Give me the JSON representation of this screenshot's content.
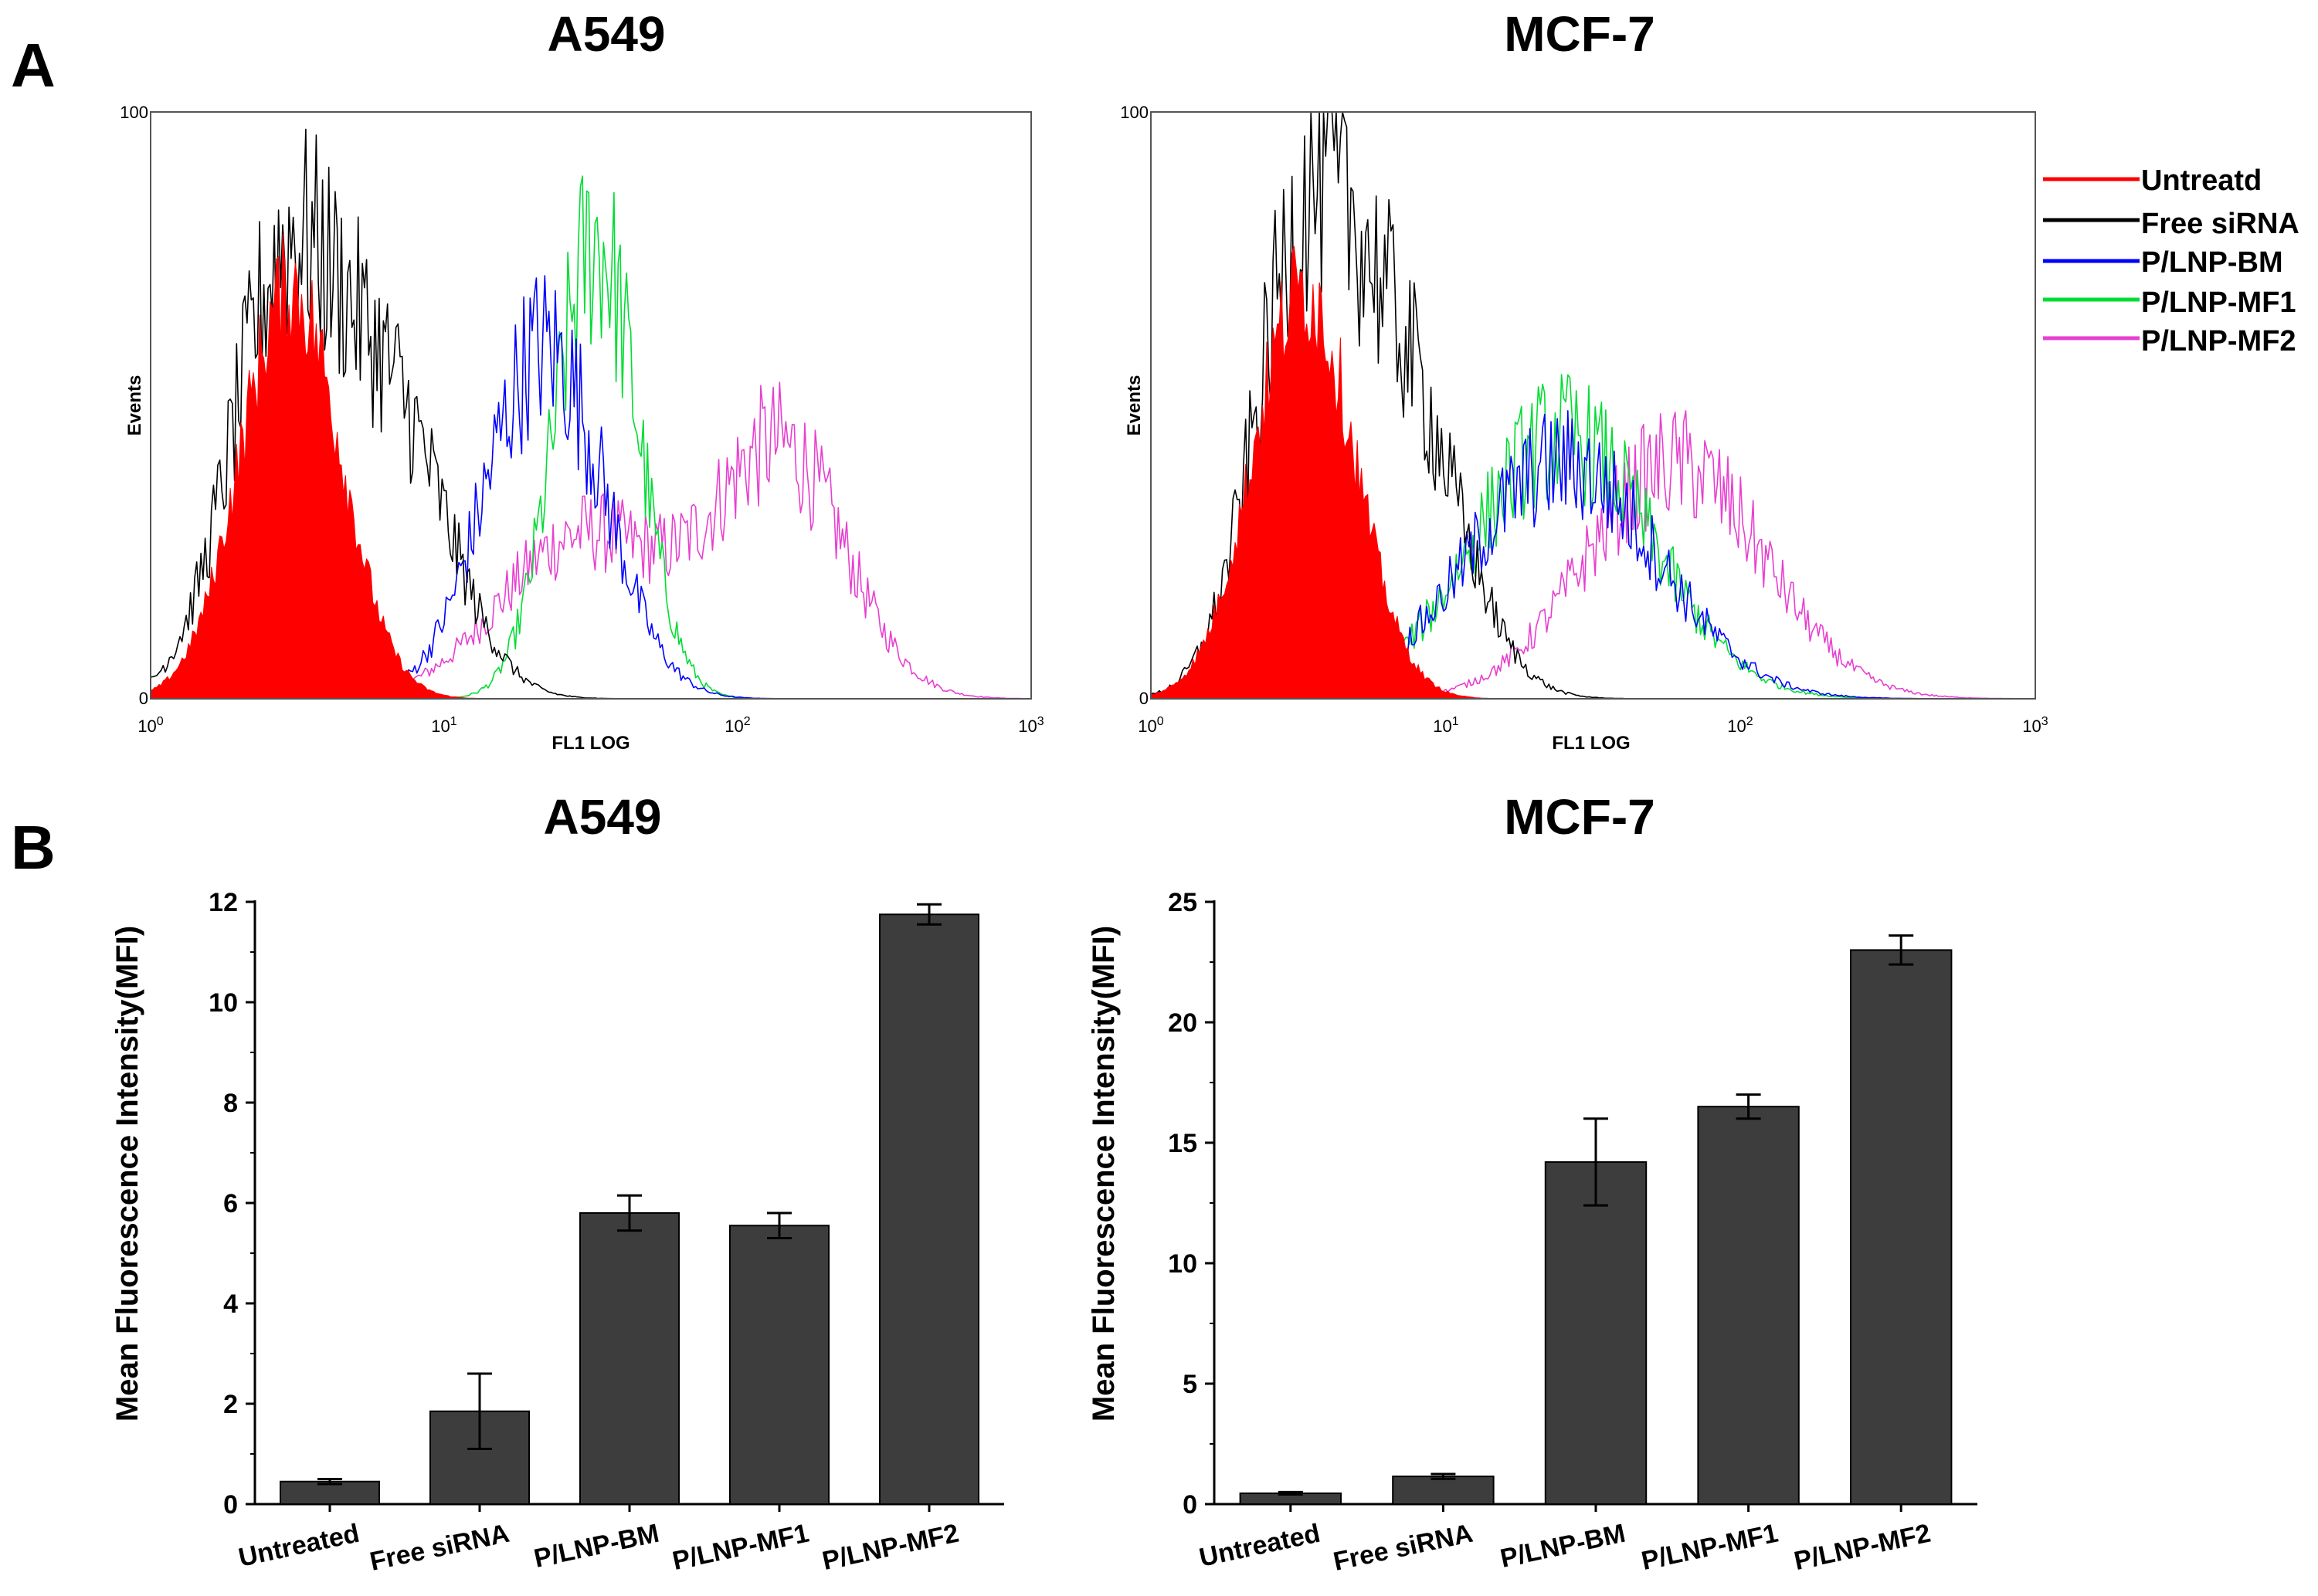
{
  "panels": {
    "a": {
      "letter": "A"
    },
    "b": {
      "letter": "B"
    }
  },
  "chart_data": [
    {
      "type": "line",
      "panel": "A",
      "title": "A549",
      "xlabel": "FL1 LOG",
      "ylabel": "Events",
      "xscale": "log",
      "xlim": [
        1,
        1000
      ],
      "ylim": [
        0,
        100
      ],
      "x_ticks": [
        {
          "base": "10",
          "exp": "0"
        },
        {
          "base": "10",
          "exp": "1"
        },
        {
          "base": "10",
          "exp": "2"
        },
        {
          "base": "10",
          "exp": "3"
        }
      ],
      "y_ticks": [
        "0",
        "100"
      ],
      "series": [
        {
          "name": "Untreatd",
          "color": "#ff0000",
          "filled": true,
          "peak_x": 3.0,
          "peak_y": 70,
          "width": 0.17
        },
        {
          "name": "Free siRNA",
          "color": "#000000",
          "filled": false,
          "components": [
            [
              2.8,
              68,
              0.18
            ],
            [
              6.5,
              48,
              0.2
            ]
          ]
        },
        {
          "name": "P/LNP-BM",
          "color": "#0000ff",
          "filled": false,
          "components": [
            [
              22,
              60,
              0.2
            ]
          ]
        },
        {
          "name": "P/LNP-MF1",
          "color": "#00dd33",
          "filled": false,
          "components": [
            [
              33,
              78,
              0.14
            ]
          ]
        },
        {
          "name": "P/LNP-MF2",
          "color": "#e83fd0",
          "filled": false,
          "components": [
            [
              30,
              28,
              0.28
            ],
            [
              140,
              42,
              0.22
            ]
          ]
        }
      ]
    },
    {
      "type": "line",
      "panel": "A",
      "title": "MCF-7",
      "xlabel": "FL1 LOG",
      "ylabel": "Events",
      "xscale": "log",
      "xlim": [
        1,
        1000
      ],
      "ylim": [
        0,
        100
      ],
      "x_ticks": [
        {
          "base": "10",
          "exp": "0"
        },
        {
          "base": "10",
          "exp": "1"
        },
        {
          "base": "10",
          "exp": "2"
        },
        {
          "base": "10",
          "exp": "3"
        }
      ],
      "y_ticks": [
        "0",
        "100"
      ],
      "series": [
        {
          "name": "Untreatd",
          "color": "#ff0000",
          "filled": true,
          "peak_x": 3.3,
          "peak_y": 70,
          "width": 0.17
        },
        {
          "name": "Free siRNA",
          "color": "#000000",
          "filled": false,
          "components": [
            [
              3.3,
              72,
              0.17
            ],
            [
              7,
              52,
              0.2
            ]
          ]
        },
        {
          "name": "P/LNP-BM",
          "color": "#0000ff",
          "filled": false,
          "components": [
            [
              25,
              40,
              0.32
            ]
          ]
        },
        {
          "name": "P/LNP-MF1",
          "color": "#00dd33",
          "filled": false,
          "components": [
            [
              25,
              45,
              0.3
            ]
          ]
        },
        {
          "name": "P/LNP-MF2",
          "color": "#e83fd0",
          "filled": false,
          "components": [
            [
              60,
              40,
              0.3
            ]
          ]
        }
      ]
    },
    {
      "type": "bar",
      "panel": "B",
      "title": "A549",
      "ylabel": "Mean Fluorescence Intensity(MFI)",
      "categories": [
        "Untreated",
        "Free siRNA",
        "P/LNP-BM",
        "P/LNP-MF1",
        "P/LNP-MF2"
      ],
      "values": [
        0.45,
        1.85,
        5.8,
        5.55,
        11.75
      ],
      "errors": [
        0.05,
        0.75,
        0.35,
        0.25,
        0.2
      ],
      "ylim": [
        0,
        12
      ],
      "yticks": [
        "0",
        "2",
        "4",
        "6",
        "8",
        "10",
        "12"
      ],
      "bar_color": "#3d3d3d"
    },
    {
      "type": "bar",
      "panel": "B",
      "title": "MCF-7",
      "ylabel": "Mean Fluorescence Intensity(MFI)",
      "categories": [
        "Untreated",
        "Free siRNA",
        "P/LNP-BM",
        "P/LNP-MF1",
        "P/LNP-MF2"
      ],
      "values": [
        0.45,
        1.15,
        14.2,
        16.5,
        23.0
      ],
      "errors": [
        0.05,
        0.1,
        1.8,
        0.5,
        0.6
      ],
      "ylim": [
        0,
        25
      ],
      "yticks": [
        "0",
        "5",
        "10",
        "15",
        "20",
        "25"
      ],
      "bar_color": "#3d3d3d"
    }
  ]
}
